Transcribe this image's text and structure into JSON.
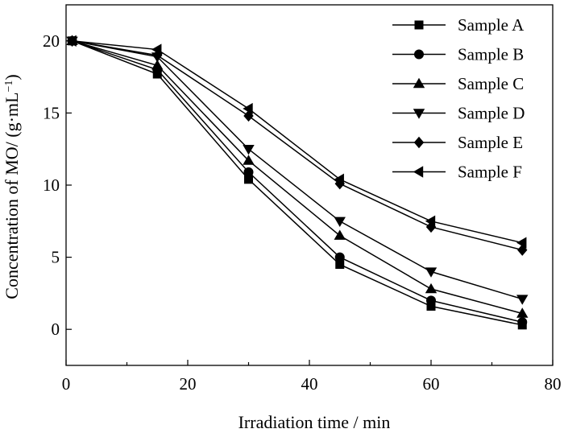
{
  "chart_data": {
    "type": "line",
    "xlabel": "Irradiation time / min",
    "ylabel_main": "Concentration of MO/ (g·mL",
    "ylabel_sup": "−1",
    "ylabel_close": ")",
    "xlim": [
      0,
      80
    ],
    "ylim": [
      -2.5,
      22.5
    ],
    "xticks": [
      0,
      20,
      40,
      60,
      80
    ],
    "xminor": [
      10,
      30,
      50,
      70
    ],
    "yticks": [
      0,
      5,
      10,
      15,
      20
    ],
    "x": [
      1,
      15,
      30,
      45,
      60,
      75
    ],
    "legend_position": "top-right",
    "series": [
      {
        "name": "Sample A",
        "marker": "square",
        "values": [
          20.0,
          17.7,
          10.4,
          4.5,
          1.6,
          0.3
        ]
      },
      {
        "name": "Sample B",
        "marker": "circle",
        "values": [
          20.0,
          18.0,
          10.9,
          5.0,
          2.0,
          0.5
        ]
      },
      {
        "name": "Sample C",
        "marker": "triangle-up",
        "values": [
          20.0,
          18.3,
          11.7,
          6.5,
          2.8,
          1.1
        ]
      },
      {
        "name": "Sample D",
        "marker": "triangle-down",
        "values": [
          20.0,
          18.9,
          12.5,
          7.5,
          4.0,
          2.1
        ]
      },
      {
        "name": "Sample E",
        "marker": "diamond",
        "values": [
          20.0,
          19.0,
          14.8,
          10.1,
          7.1,
          5.5
        ]
      },
      {
        "name": "Sample F",
        "marker": "triangle-left",
        "values": [
          20.0,
          19.4,
          15.3,
          10.4,
          7.5,
          6.0
        ]
      }
    ]
  }
}
